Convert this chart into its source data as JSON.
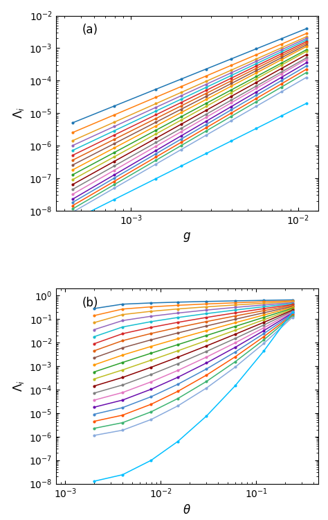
{
  "colors": [
    "#1f77b4",
    "#ff7f0e",
    "#e8a020",
    "#9467bd",
    "#17becf",
    "#d62728",
    "#e06010",
    "#8c564b",
    "#ff9900",
    "#2ca02c",
    "#bcbd22",
    "#8b0000",
    "#7f7f7f",
    "#e377c2",
    "#6a0dad",
    "#4488cc",
    "#ff5500",
    "#3cb371",
    "#88aadd",
    "#00bfff"
  ],
  "panel_a": {
    "xlabel": "g",
    "ylabel": "\\Lambda_i",
    "label": "(a)",
    "xlim_log": [
      -3.45,
      -1.88
    ],
    "ylim_log": [
      -8,
      -2
    ],
    "x_log": [
      -3.35,
      -3.1,
      -2.85,
      -2.7,
      -2.55,
      -2.4,
      -2.25,
      -2.1,
      -1.95
    ],
    "y_left_log": [
      -5.3,
      -5.6,
      -5.85,
      -6.0,
      -6.15,
      -6.3,
      -6.45,
      -6.6,
      -6.75,
      -6.9,
      -7.05,
      -7.2,
      -7.35,
      -7.5,
      -7.65,
      -7.75,
      -7.85,
      -7.95,
      -8.05,
      -8.3
    ],
    "y_right_log": [
      -2.4,
      -2.55,
      -2.65,
      -2.7,
      -2.75,
      -2.8,
      -2.85,
      -2.9,
      -2.95,
      -3.05,
      -3.1,
      -3.2,
      -3.3,
      -3.35,
      -3.45,
      -3.55,
      -3.65,
      -3.75,
      -3.9,
      -4.7
    ]
  },
  "panel_b": {
    "xlabel": "\\theta",
    "ylabel": "\\Lambda_i",
    "label": "(b)",
    "xlim_log": [
      -3.1,
      -0.35
    ],
    "ylim_log": [
      -8,
      0.3
    ],
    "x_log": [
      -2.7,
      -2.4,
      -2.1,
      -1.82,
      -1.52,
      -1.22,
      -0.92,
      -0.62
    ],
    "y_left_log": [
      -0.55,
      -0.85,
      -1.15,
      -1.45,
      -1.75,
      -2.05,
      -2.35,
      -2.65,
      -2.95,
      -3.25,
      -3.55,
      -3.85,
      -4.15,
      -4.45,
      -4.75,
      -5.05,
      -5.35,
      -5.65,
      -5.95,
      -7.9
    ],
    "y_right_log": [
      -0.18,
      -0.22,
      -0.26,
      -0.3,
      -0.34,
      -0.38,
      -0.42,
      -0.46,
      -0.5,
      -0.54,
      -0.58,
      -0.62,
      -0.66,
      -0.7,
      -0.74,
      -0.78,
      -0.82,
      -0.86,
      -0.92,
      -0.7
    ]
  }
}
